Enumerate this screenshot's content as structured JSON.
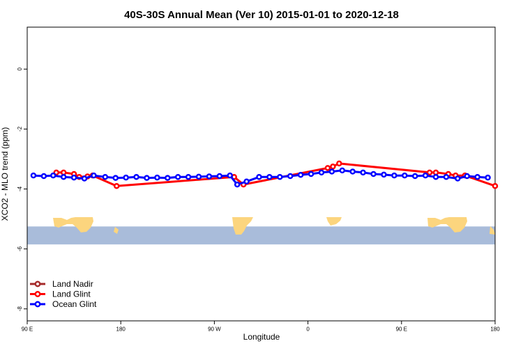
{
  "chart_data": {
    "type": "line",
    "title": "40S-30S Annual Mean (Ver 10)   2015-01-01 to 2020-12-18",
    "xlabel": "Longitude",
    "ylabel": "XCO2 - MLO trend (ppm)",
    "xlim": [
      90,
      540
    ],
    "ylim": [
      -8.4,
      1.4
    ],
    "x_ticks": [
      {
        "value": 90,
        "label": "90 E"
      },
      {
        "value": 180,
        "label": "180"
      },
      {
        "value": 270,
        "label": "90 W"
      },
      {
        "value": 360,
        "label": "0"
      },
      {
        "value": 450,
        "label": "90 E"
      },
      {
        "value": 540,
        "label": "180"
      }
    ],
    "y_ticks": [
      {
        "value": 0,
        "label": "0"
      },
      {
        "value": -2,
        "label": "-2"
      },
      {
        "value": -4,
        "label": "-4"
      },
      {
        "value": -6,
        "label": "-6"
      },
      {
        "value": -8,
        "label": "-8"
      }
    ],
    "legend_position": "bottom-left",
    "map_strip": {
      "lat_range": [
        -40,
        -30
      ],
      "y_range": [
        -5.85,
        -5.25
      ],
      "ocean_color": "#a9bcda",
      "land_color": "#fcd57e"
    },
    "series": [
      {
        "name": "Land Nadir",
        "color": "#a52a2a",
        "points": []
      },
      {
        "name": "Land Glint",
        "color": "#ff0000",
        "points": [
          [
            118,
            -3.45
          ],
          [
            125,
            -3.45
          ],
          [
            135,
            -3.5
          ],
          [
            140,
            -3.6
          ],
          [
            148,
            -3.58
          ],
          [
            153,
            -3.55
          ],
          [
            176,
            -3.9
          ],
          [
            289,
            -3.6
          ],
          [
            298,
            -3.85
          ],
          [
            379,
            -3.3
          ],
          [
            384,
            -3.25
          ],
          [
            390,
            -3.15
          ],
          [
            477,
            -3.45
          ],
          [
            483,
            -3.45
          ],
          [
            495,
            -3.5
          ],
          [
            502,
            -3.55
          ],
          [
            511,
            -3.55
          ],
          [
            540,
            -3.9
          ]
        ]
      },
      {
        "name": "Ocean Glint",
        "color": "#0000ff",
        "points": [
          [
            96,
            -3.55
          ],
          [
            106,
            -3.57
          ],
          [
            115,
            -3.55
          ],
          [
            125,
            -3.6
          ],
          [
            135,
            -3.62
          ],
          [
            145,
            -3.65
          ],
          [
            154,
            -3.55
          ],
          [
            165,
            -3.6
          ],
          [
            175,
            -3.63
          ],
          [
            185,
            -3.62
          ],
          [
            195,
            -3.6
          ],
          [
            205,
            -3.63
          ],
          [
            215,
            -3.62
          ],
          [
            225,
            -3.63
          ],
          [
            235,
            -3.6
          ],
          [
            245,
            -3.6
          ],
          [
            255,
            -3.59
          ],
          [
            265,
            -3.58
          ],
          [
            275,
            -3.57
          ],
          [
            285,
            -3.55
          ],
          [
            292,
            -3.85
          ],
          [
            301,
            -3.75
          ],
          [
            313,
            -3.6
          ],
          [
            323,
            -3.6
          ],
          [
            333,
            -3.6
          ],
          [
            343,
            -3.57
          ],
          [
            353,
            -3.53
          ],
          [
            363,
            -3.5
          ],
          [
            373,
            -3.45
          ],
          [
            383,
            -3.42
          ],
          [
            393,
            -3.38
          ],
          [
            403,
            -3.42
          ],
          [
            413,
            -3.45
          ],
          [
            423,
            -3.5
          ],
          [
            433,
            -3.52
          ],
          [
            443,
            -3.55
          ],
          [
            453,
            -3.55
          ],
          [
            463,
            -3.57
          ],
          [
            473,
            -3.55
          ],
          [
            483,
            -3.6
          ],
          [
            493,
            -3.6
          ],
          [
            504,
            -3.65
          ],
          [
            513,
            -3.57
          ],
          [
            523,
            -3.6
          ],
          [
            533,
            -3.62
          ]
        ]
      }
    ]
  }
}
